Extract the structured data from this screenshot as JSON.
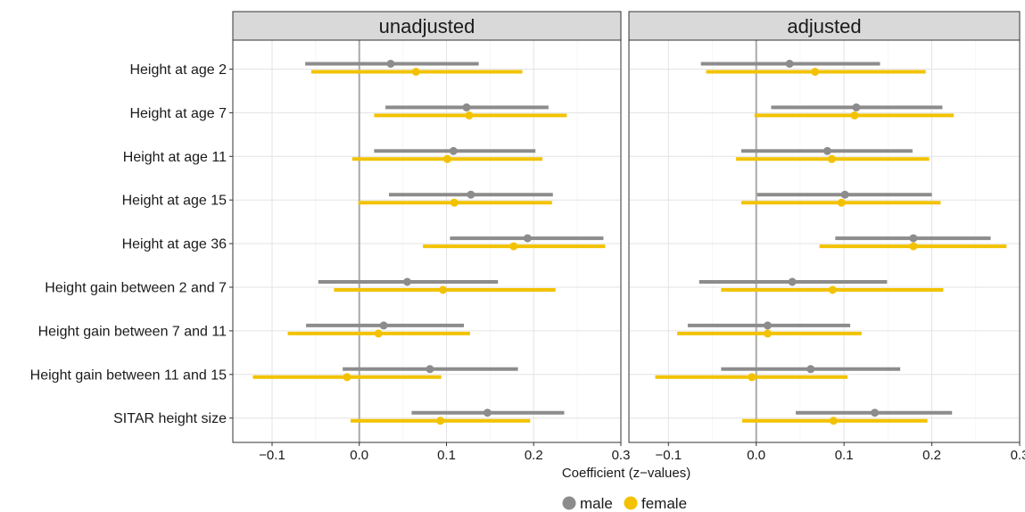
{
  "chart_data": {
    "type": "forest",
    "xlabel": "Coefficient (z−values)",
    "xlim": [
      -0.145,
      0.3
    ],
    "xticks": [
      -0.1,
      0.0,
      0.1,
      0.2,
      0.3
    ],
    "xtick_labels": [
      "−0.1",
      "0.0",
      "0.1",
      "0.2",
      "0.3"
    ],
    "grid": true,
    "reference_line": 0,
    "legend_position": "bottom",
    "categories": [
      "Height at age 2",
      "Height at age 7",
      "Height at age 11",
      "Height at age 15",
      "Height at age 36",
      "Height gain between 2 and 7",
      "Height gain between 7 and 11",
      "Height gain between 11 and 15",
      "SITAR height size"
    ],
    "series_styles": [
      {
        "name": "male",
        "color": "#8c8c8c"
      },
      {
        "name": "female",
        "color": "#f2c200"
      }
    ],
    "panels": [
      {
        "title": "unadjusted",
        "series": [
          {
            "name": "male",
            "estimate": [
              0.036,
              0.123,
              0.108,
              0.128,
              0.193,
              0.055,
              0.028,
              0.081,
              0.147
            ],
            "lower": [
              -0.062,
              0.03,
              0.017,
              0.034,
              0.104,
              -0.047,
              -0.061,
              -0.019,
              0.06
            ],
            "upper": [
              0.137,
              0.217,
              0.202,
              0.222,
              0.28,
              0.159,
              0.12,
              0.182,
              0.235
            ]
          },
          {
            "name": "female",
            "estimate": [
              0.065,
              0.126,
              0.101,
              0.109,
              0.177,
              0.096,
              0.022,
              -0.014,
              0.093
            ],
            "lower": [
              -0.055,
              0.017,
              -0.008,
              -0.001,
              0.073,
              -0.029,
              -0.082,
              -0.122,
              -0.01
            ],
            "upper": [
              0.187,
              0.238,
              0.21,
              0.221,
              0.282,
              0.225,
              0.127,
              0.094,
              0.196
            ]
          }
        ]
      },
      {
        "title": "adjusted",
        "series": [
          {
            "name": "male",
            "estimate": [
              0.038,
              0.114,
              0.081,
              0.101,
              0.179,
              0.041,
              0.013,
              0.062,
              0.135
            ],
            "lower": [
              -0.063,
              0.017,
              -0.017,
              0.001,
              0.09,
              -0.065,
              -0.078,
              -0.04,
              0.045
            ],
            "upper": [
              0.141,
              0.212,
              0.178,
              0.2,
              0.267,
              0.149,
              0.107,
              0.164,
              0.223
            ]
          },
          {
            "name": "female",
            "estimate": [
              0.067,
              0.112,
              0.086,
              0.097,
              0.179,
              0.087,
              0.013,
              -0.005,
              0.088
            ],
            "lower": [
              -0.057,
              -0.002,
              -0.023,
              -0.017,
              0.072,
              -0.04,
              -0.09,
              -0.115,
              -0.016
            ],
            "upper": [
              0.193,
              0.225,
              0.197,
              0.21,
              0.285,
              0.213,
              0.12,
              0.104,
              0.195
            ]
          }
        ]
      }
    ]
  }
}
